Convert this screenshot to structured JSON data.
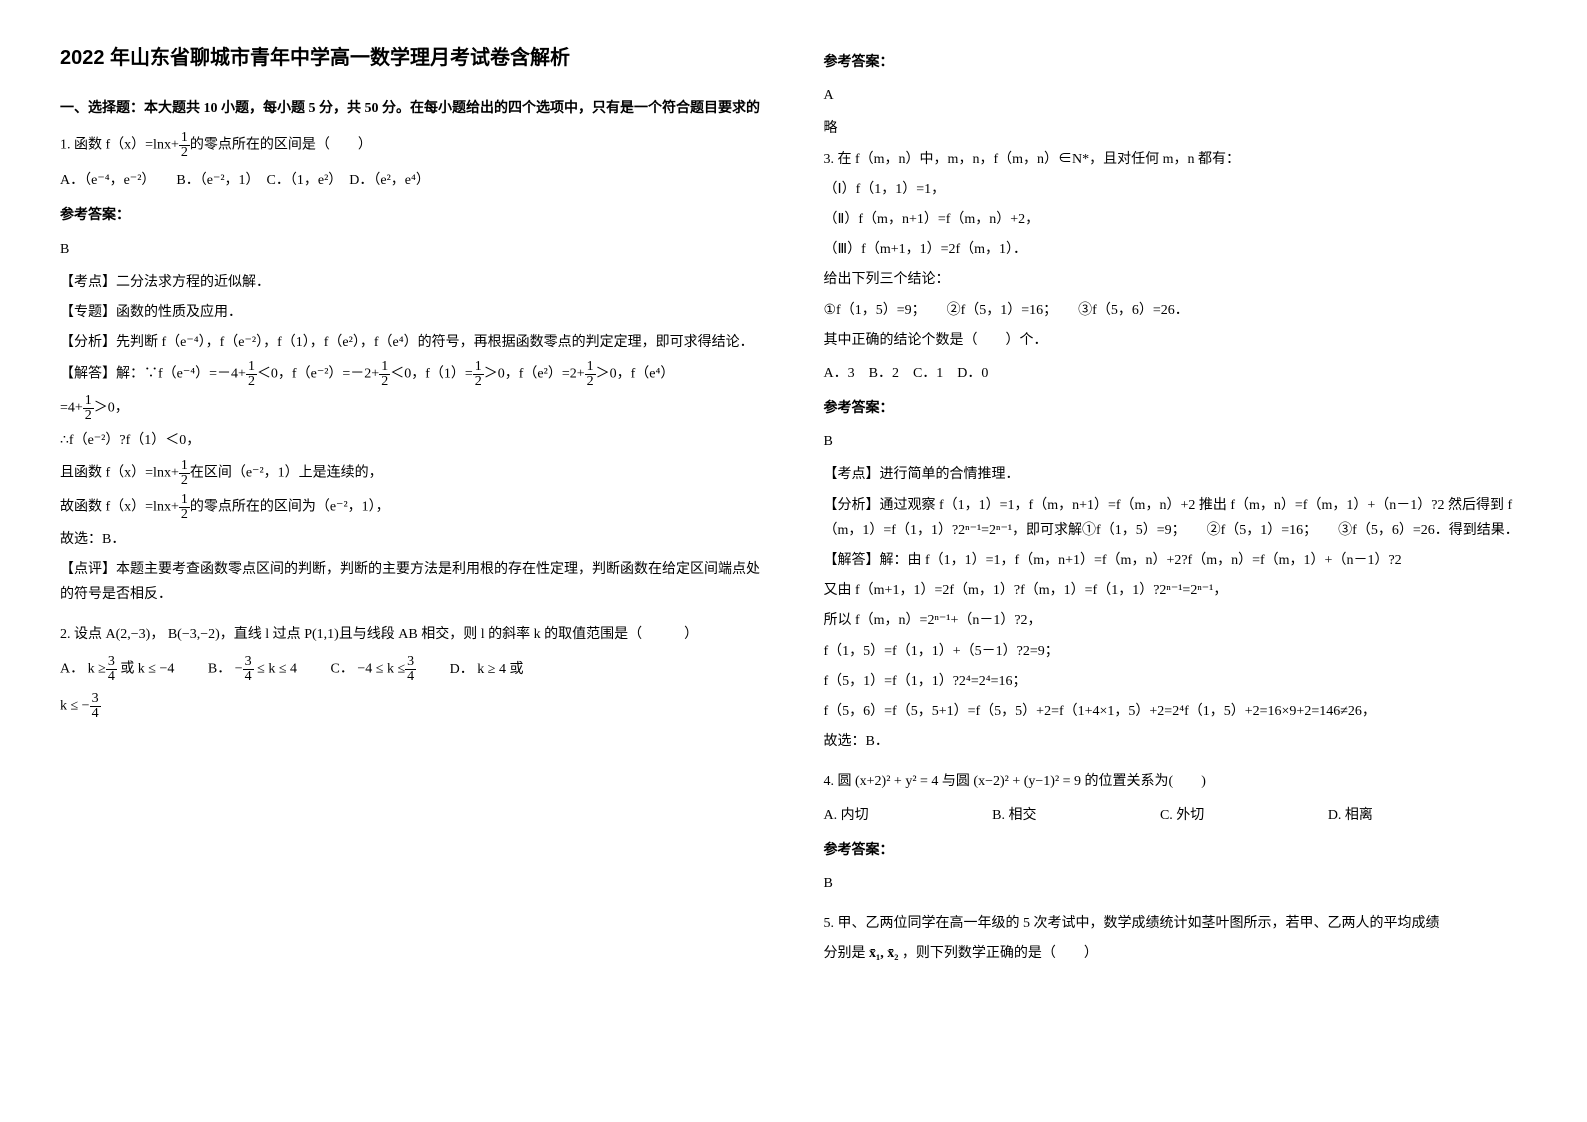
{
  "header": {
    "title": "2022 年山东省聊城市青年中学高一数学理月考试卷含解析",
    "section_title": "一、选择题：本大题共 10 小题，每小题 5 分，共 50 分。在每小题给出的四个选项中，只有是一个符合题目要求的"
  },
  "q1": {
    "stem_prefix": "1. 函数",
    "func": "f（x）=lnx+",
    "stem_suffix": "的零点所在的区间是（　　）",
    "opts": "A．（e⁻⁴，e⁻²）　　B．（e⁻²，1）　C．（1，e²）　D．（e²，e⁴）",
    "ans_header": "参考答案：",
    "ans": "B",
    "tag1": "【考点】二分法求方程的近似解．",
    "tag2": "【专题】函数的性质及应用．",
    "analysis": "【分析】先判断 f（e⁻⁴），f（e⁻²），f（1），f（e²），f（e⁴）的符号，再根据函数零点的判定定理，即可求得结论．",
    "sol1_prefix": "【解答】解：∵f（e⁻⁴）=－4+",
    "sol1_mid1": "＜0，f（e⁻²）=－2+",
    "sol1_mid2": "＜0，f（1）=",
    "sol1_mid3": "＞0，f（e²）=2+",
    "sol1_suffix": "＞0，f（e⁴）",
    "sol2_prefix": "=4+",
    "sol2_suffix": "＞0，",
    "sol3": "∴f（e⁻²）?f（1）＜0，",
    "sol4_prefix": "且函数",
    "sol4_func": "f（x）=lnx+",
    "sol4_suffix": "在区间（e⁻²，1）上是连续的，",
    "sol5_prefix": "故函数",
    "sol5_func": "f（x）=lnx+",
    "sol5_suffix": "的零点所在的区间为（e⁻²，1），",
    "sol6": "故选：B．",
    "comment": "【点评】本题主要考查函数零点区间的判断，判断的主要方法是利用根的存在性定理，判断函数在给定区间端点处的符号是否相反．"
  },
  "q2": {
    "stem_prefix": "2. 设点",
    "pointA": "A(2,−3)",
    "comma": "，",
    "pointB": "B(−3,−2)",
    "mid1": "，直线 l 过点",
    "pointP": "P(1,1)",
    "stem_suffix": "且与线段 AB 相交，则 l 的斜率 k 的取值范围是（　　　）",
    "optA_prefix": "A．",
    "optA_text1": "k ≥",
    "optA_text2": "或 k ≤ −4",
    "optB_prefix": "B．",
    "optB_text1": "−",
    "optB_text2": "≤ k ≤ 4",
    "optC_prefix": "C．",
    "optC_text": "−4 ≤ k ≤",
    "optD_prefix": "D．",
    "optD_text": "k ≥ 4 或",
    "optD_line2": "k ≤ −"
  },
  "right": {
    "ans_header1": "参考答案：",
    "ans1": "A",
    "ans1_note": "略",
    "q3": {
      "stem": "3. 在 f（m，n）中，m，n，f（m，n）∈N*，且对任何 m，n 都有：",
      "cond1": "（Ⅰ）f（1，1）=1，",
      "cond2": "（Ⅱ）f（m，n+1）=f（m，n）+2，",
      "cond3": "（Ⅲ）f（m+1，1）=2f（m，1）．",
      "give": "给出下列三个结论：",
      "items": "①f（1，5）=9；　　②f（5，1）=16；　　③f（5，6）=26．",
      "ask": "其中正确的结论个数是（　　）个．",
      "opts": "A．3　B．2　C．1　D．0",
      "ans_header": "参考答案：",
      "ans": "B",
      "tag1": "【考点】进行简单的合情推理．",
      "analysis": "【分析】通过观察 f（1，1）=1，f（m，n+1）=f（m，n）+2 推出 f（m，n）=f（m，1）+（n－1）?2 然后得到 f（m，1）=f（1，1）?2ⁿ⁻¹=2ⁿ⁻¹，即可求解①f（1，5）=9；　　②f（5，1）=16；　　③f（5，6）=26．得到结果．",
      "sol1": "【解答】解：由 f（1，1）=1，f（m，n+1）=f（m，n）+2?f（m，n）=f（m，1）+（n－1）?2",
      "sol2": "又由 f（m+1，1）=2f（m，1）?f（m，1）=f（1，1）?2ⁿ⁻¹=2ⁿ⁻¹，",
      "sol3": "所以 f（m，n）=2ⁿ⁻¹+（n－1）?2，",
      "sol4": "f（1，5）=f（1，1）+（5－1）?2=9；",
      "sol5": "f（5，1）=f（1，1）?2⁴=2⁴=16；",
      "sol6": "f（5，6）=f（5，5+1）=f（5，5）+2=f（1+4×1，5）+2=2⁴f（1，5）+2=16×9+2=146≠26，",
      "sol7": "故选：B．"
    },
    "q4": {
      "stem_prefix": "4. 圆",
      "eq1": "(x+2)² + y² = 4",
      "mid": "与圆",
      "eq2": "(x−2)² + (y−1)² = 9",
      "stem_suffix": "的位置关系为(　　)",
      "optA": "A. 内切",
      "optB": "B. 相交",
      "optC": "C. 外切",
      "optD": "D. 相离",
      "ans_header": "参考答案：",
      "ans": "B"
    },
    "q5": {
      "stem": "5. 甲、乙两位同学在高一年级的 5 次考试中，数学成绩统计如茎叶图所示，若甲、乙两人的平均成绩",
      "stem2_prefix": "分别是",
      "var": "x̄₁, x̄₂",
      "stem2_suffix": "，则下列数学正确的是（　　）"
    }
  }
}
